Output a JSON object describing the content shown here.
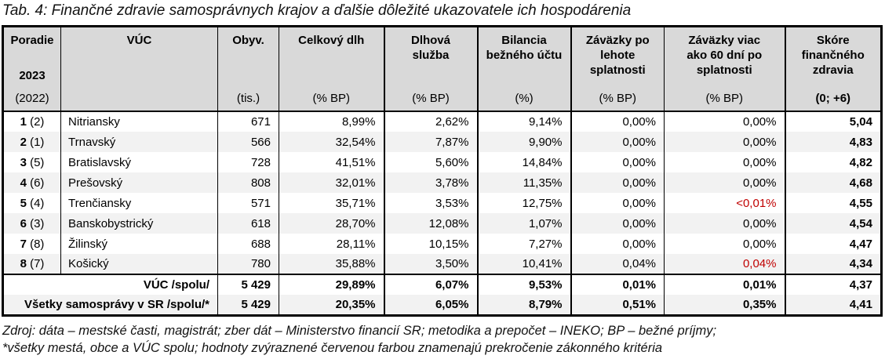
{
  "title": "Tab. 4: Finančné zdravie samosprávnych krajov a ďalšie dôležité ukazovatele ich hospodárenia",
  "colors": {
    "header_bg": "#D9D9D9",
    "alt_row_bg": "#F2F2F2",
    "red_highlight": "#C00000",
    "border": "#000000"
  },
  "table": {
    "columns": [
      {
        "key": "poradie",
        "lines": [
          "Poradie"
        ],
        "mid": "2023",
        "unit": "(2022)",
        "bold_unit": false
      },
      {
        "key": "vuc",
        "lines": [
          "VÚC"
        ],
        "mid": "",
        "unit": "",
        "bold_unit": false
      },
      {
        "key": "obyvatelia",
        "lines": [
          "Obyv."
        ],
        "mid": "",
        "unit": "(tis.)",
        "bold_unit": false
      },
      {
        "key": "celkovy-dlh",
        "lines": [
          "Celkový dlh"
        ],
        "mid": "",
        "unit": "(% BP)",
        "bold_unit": false
      },
      {
        "key": "dlhova-sluzba",
        "lines": [
          "Dlhová",
          "služba"
        ],
        "mid": "",
        "unit": "(% BP)",
        "bold_unit": false
      },
      {
        "key": "bilancia",
        "lines": [
          "Bilancia",
          "bežného účtu"
        ],
        "mid": "",
        "unit": "(%)",
        "bold_unit": false
      },
      {
        "key": "zavazky-po-lehote",
        "lines": [
          "Záväzky po",
          "lehote",
          "splatnosti"
        ],
        "mid": "",
        "unit": "(% BP)",
        "bold_unit": false
      },
      {
        "key": "zavazky-60-dni",
        "lines": [
          "Záväzky viac",
          "ako 60 dní po",
          "splatnosti"
        ],
        "mid": "",
        "unit": "(% BP)",
        "bold_unit": false
      },
      {
        "key": "skore",
        "lines": [
          "Skóre",
          "finančného",
          "zdravia"
        ],
        "mid": "",
        "unit": "(0; +6)",
        "bold_unit": true
      }
    ],
    "rows": [
      {
        "rank": "1",
        "prev": "(2)",
        "name": "Nitriansky",
        "obyv": "671",
        "dlh": "8,99%",
        "sluzba": "2,62%",
        "bilancia": "9,14%",
        "zav_po": "0,00%",
        "zav_po_red": false,
        "zav_60": "0,00%",
        "zav_60_red": false,
        "skore": "5,04"
      },
      {
        "rank": "2",
        "prev": "(1)",
        "name": "Trnavský",
        "obyv": "566",
        "dlh": "32,54%",
        "sluzba": "7,87%",
        "bilancia": "9,90%",
        "zav_po": "0,00%",
        "zav_po_red": false,
        "zav_60": "0,00%",
        "zav_60_red": false,
        "skore": "4,83"
      },
      {
        "rank": "3",
        "prev": "(5)",
        "name": "Bratislavský",
        "obyv": "728",
        "dlh": "41,51%",
        "sluzba": "5,60%",
        "bilancia": "14,84%",
        "zav_po": "0,00%",
        "zav_po_red": false,
        "zav_60": "0,00%",
        "zav_60_red": false,
        "skore": "4,82"
      },
      {
        "rank": "4",
        "prev": "(6)",
        "name": "Prešovský",
        "obyv": "808",
        "dlh": "32,01%",
        "sluzba": "3,78%",
        "bilancia": "11,35%",
        "zav_po": "0,00%",
        "zav_po_red": false,
        "zav_60": "0,00%",
        "zav_60_red": false,
        "skore": "4,68"
      },
      {
        "rank": "5",
        "prev": "(4)",
        "name": "Trenčiansky",
        "obyv": "571",
        "dlh": "35,71%",
        "sluzba": "3,53%",
        "bilancia": "12,75%",
        "zav_po": "0,00%",
        "zav_po_red": false,
        "zav_60": "<0,01%",
        "zav_60_red": true,
        "skore": "4,55"
      },
      {
        "rank": "6",
        "prev": "(3)",
        "name": "Banskobystrický",
        "obyv": "618",
        "dlh": "28,70%",
        "sluzba": "12,08%",
        "bilancia": "1,07%",
        "zav_po": "0,00%",
        "zav_po_red": false,
        "zav_60": "0,00%",
        "zav_60_red": false,
        "skore": "4,54"
      },
      {
        "rank": "7",
        "prev": "(8)",
        "name": "Žilinský",
        "obyv": "688",
        "dlh": "28,11%",
        "sluzba": "10,15%",
        "bilancia": "7,27%",
        "zav_po": "0,00%",
        "zav_po_red": false,
        "zav_60": "0,00%",
        "zav_60_red": false,
        "skore": "4,47"
      },
      {
        "rank": "8",
        "prev": "(7)",
        "name": "Košický",
        "obyv": "780",
        "dlh": "35,88%",
        "sluzba": "3,50%",
        "bilancia": "10,41%",
        "zav_po": "0,04%",
        "zav_po_red": false,
        "zav_60": "0,04%",
        "zav_60_red": true,
        "skore": "4,34"
      }
    ],
    "summary": [
      {
        "label": "VÚC /spolu/",
        "obyv": "5 429",
        "dlh": "29,89%",
        "sluzba": "6,07%",
        "bilancia": "9,53%",
        "zav_po": "0,01%",
        "zav_60": "0,01%",
        "skore": "4,37"
      },
      {
        "label": "Všetky samosprávy v SR /spolu/*",
        "obyv": "5 429",
        "dlh": "20,35%",
        "sluzba": "6,05%",
        "bilancia": "8,79%",
        "zav_po": "0,51%",
        "zav_60": "0,35%",
        "skore": "4,41"
      }
    ]
  },
  "footer": {
    "line1": "Zdroj: dáta – mestské časti, magistrát; zber dát – Ministerstvo financií SR; metodika a prepočet – INEKO; BP – bežné príjmy;",
    "line2": "*všetky mestá, obce a VÚC spolu; hodnoty zvýraznené červenou farbou znamenajú prekročenie zákonného kritéria"
  }
}
